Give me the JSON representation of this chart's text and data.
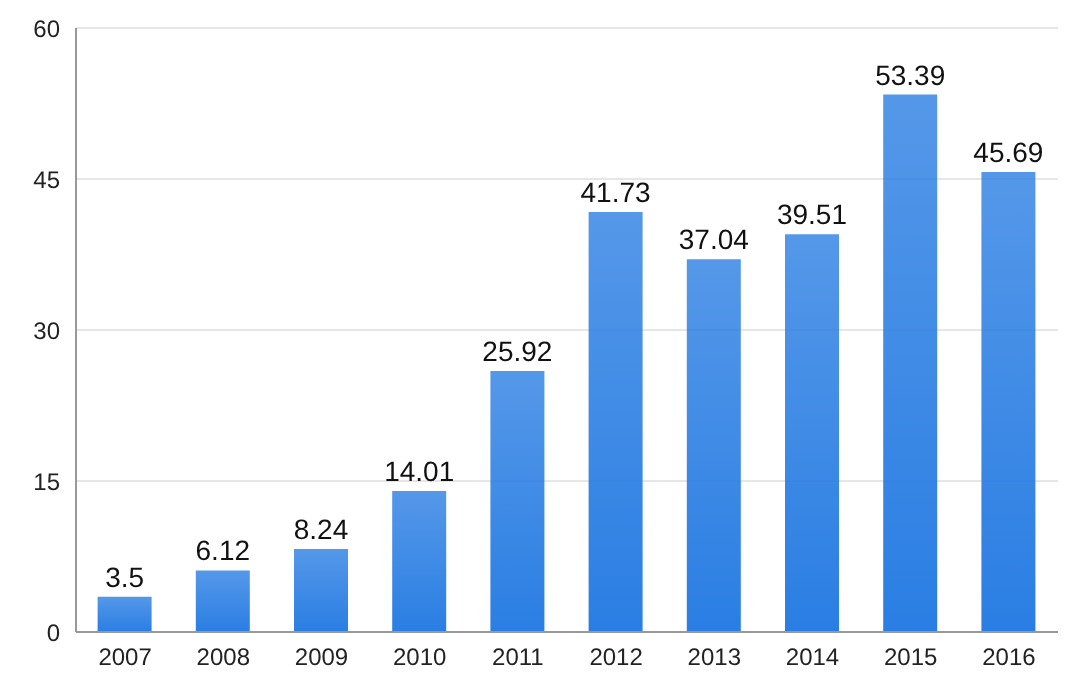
{
  "chart_data": {
    "type": "bar",
    "categories": [
      "2007",
      "2008",
      "2009",
      "2010",
      "2011",
      "2012",
      "2013",
      "2014",
      "2015",
      "2016"
    ],
    "values": [
      3.5,
      6.12,
      8.24,
      14.01,
      25.92,
      41.73,
      37.04,
      39.51,
      53.39,
      45.69
    ],
    "color": "#2a7ee3",
    "ylim": [
      0,
      60
    ],
    "yticks": [
      0,
      15,
      30,
      45,
      60
    ],
    "grid": "y",
    "data_labels": true
  }
}
